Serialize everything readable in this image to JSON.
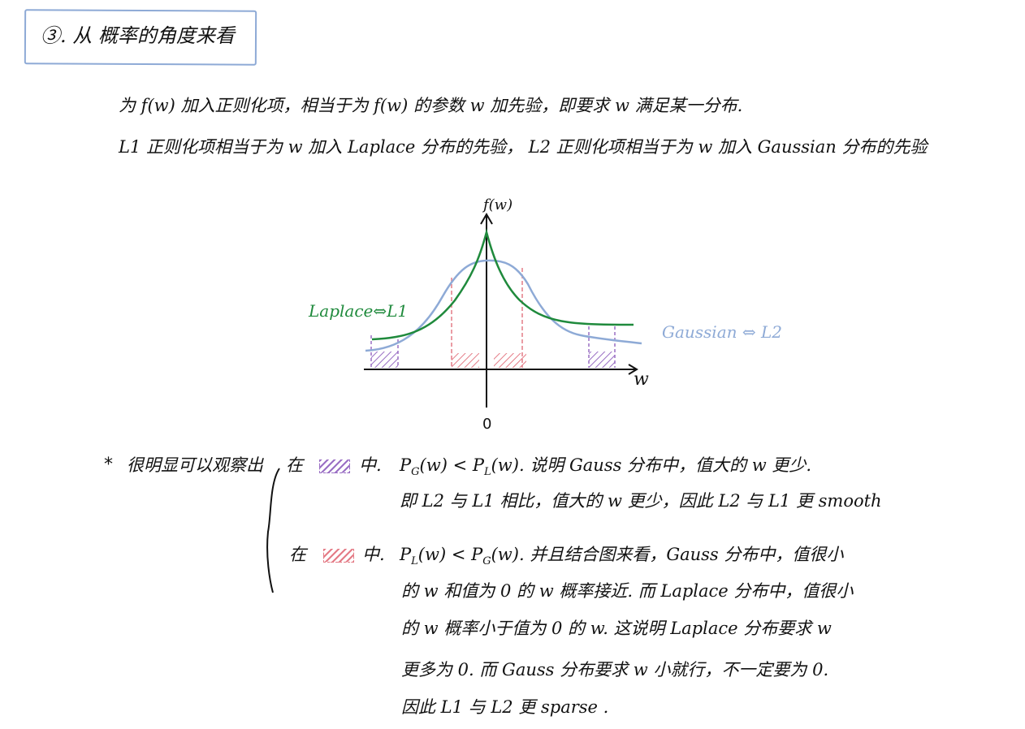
{
  "heading": {
    "title": "③. 从 概率的角度来看"
  },
  "intro": {
    "line1": "为 f(w) 加入正则化项，相当于为 f(w) 的参数 w 加先验，即要求 w 满足某一分布.",
    "line2": "L1 正则化项相当于为 w 加入 Laplace 分布的先验，  L2 正则化项相当于为 w 加入 Gaussian 分布的先验"
  },
  "graph": {
    "y_axis_label": "f(w)",
    "x_axis_label": "w",
    "origin_label": "0",
    "laplace_label": "Laplace⇔L1",
    "gaussian_label": "Gaussian ⇔ L2",
    "colors": {
      "laplace": "#1f8a3c",
      "gaussian": "#8eaad6",
      "tail_region": "#9a6fc4",
      "center_region": "#e47b86"
    }
  },
  "notes": {
    "star": "*",
    "lead": "很明显可以观察出",
    "case1": {
      "prefix": "在",
      "in": "中.",
      "comparison_left": "P",
      "comparison_left_sub": "G",
      "comparison_mid": "(w) < P",
      "comparison_right_sub": "L",
      "comparison_rest": "(w). 说明 Gauss 分布中，值大的 w 更少.",
      "line2": "即 L2 与 L1 相比，值大的 w 更少，因此 L2 与 L1 更 smooth"
    },
    "case2": {
      "prefix": "在",
      "in": "中.",
      "comparison_left": "P",
      "comparison_left_sub": "L",
      "comparison_mid": "(w) < P",
      "comparison_right_sub": "G",
      "comparison_rest": "(w). 并且结合图来看，Gauss 分布中，值很小",
      "line2": "的 w 和值为 0 的 w 概率接近. 而 Laplace 分布中，值很小",
      "line3": "的 w 概率小于值为 0 的 w. 这说明 Laplace 分布要求 w",
      "line4": "更多为 0. 而 Gauss 分布要求 w 小就行，不一定要为 0.",
      "line5": "因此 L1 与 L2 更 sparse ."
    }
  }
}
